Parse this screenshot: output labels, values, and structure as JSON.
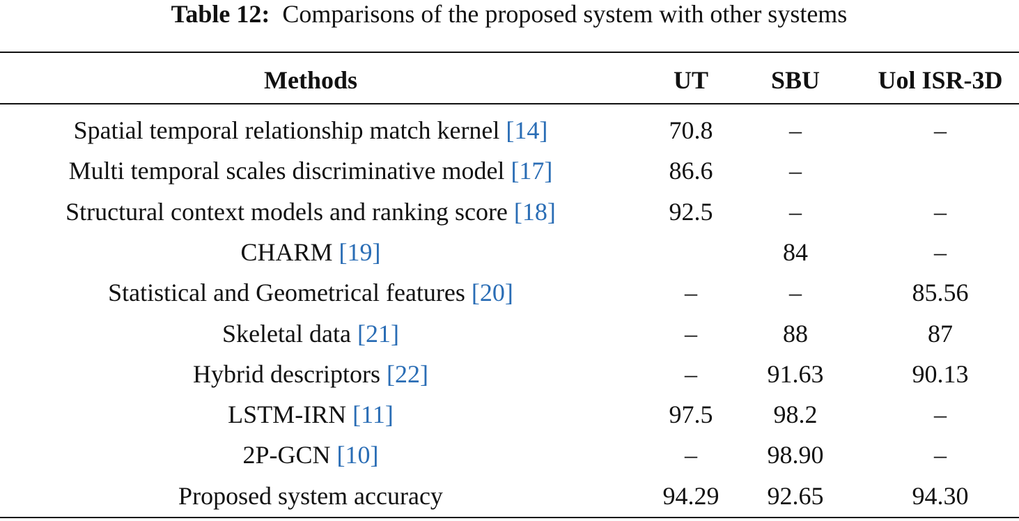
{
  "caption": {
    "label": "Table 12:",
    "text": "Comparisons of the proposed system with other systems"
  },
  "table": {
    "header": [
      "Methods",
      "UT",
      "SBU",
      "Uol ISR-3D"
    ],
    "rows": [
      {
        "method": "Spatial temporal relationship match kernel",
        "ref": "[14]",
        "cells": [
          "70.8",
          "–",
          "–"
        ]
      },
      {
        "method": "Multi temporal scales discriminative model",
        "ref": "[17]",
        "cells": [
          "86.6",
          "–",
          null
        ]
      },
      {
        "method": "Structural context models and ranking score",
        "ref": "[18]",
        "cells": [
          "92.5",
          "–",
          "–"
        ]
      },
      {
        "method": "CHARM",
        "ref": "[19]",
        "cells": [
          null,
          "84",
          "–"
        ]
      },
      {
        "method": "Statistical and Geometrical features",
        "ref": "[20]",
        "cells": [
          "–",
          "–",
          "85.56"
        ]
      },
      {
        "method": "Skeletal data",
        "ref": "[21]",
        "cells": [
          "–",
          "88",
          "87"
        ]
      },
      {
        "method": "Hybrid descriptors",
        "ref": "[22]",
        "cells": [
          "–",
          "91.63",
          "90.13"
        ]
      },
      {
        "method": "LSTM-IRN",
        "ref": "[11]",
        "cells": [
          "97.5",
          "98.2",
          "–"
        ]
      },
      {
        "method": "2P-GCN",
        "ref": "[10]",
        "cells": [
          "–",
          "98.90",
          "–"
        ]
      },
      {
        "method": "Proposed system accuracy",
        "ref": null,
        "cells": [
          "94.29",
          "92.65",
          "94.30"
        ]
      }
    ]
  }
}
